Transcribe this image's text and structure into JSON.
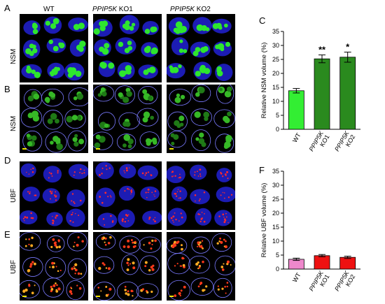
{
  "panels": {
    "A": "A",
    "B": "B",
    "C": "C",
    "D": "D",
    "E": "E",
    "F": "F"
  },
  "column_headers": {
    "wt": "WT",
    "ko1_gene": "PPIP5K",
    "ko1_suffix": " KO1",
    "ko2_gene": "PPIP5K",
    "ko2_suffix": " KO2"
  },
  "row_labels": {
    "A": "NSM",
    "B": "NSM",
    "D": "UBF",
    "E": "UBF"
  },
  "colors": {
    "nucleus_blue": "#1c1cb4",
    "nsm_green": "#2ee62e",
    "ubf_red": "#ff2a2a",
    "bar_wt_nsm": "#33ee33",
    "bar_ko_nsm": "#2a8a1e",
    "bar_wt_ubf": "#ee88cc",
    "bar_ko_ubf": "#ee1111"
  },
  "chart_data": [
    {
      "type": "bar",
      "panel": "C",
      "categories": [
        "WT",
        "PPIP5K KO1",
        "PPIP5K KO2"
      ],
      "category_lines": [
        [
          "WT"
        ],
        [
          "PPIP5K",
          "KO1"
        ],
        [
          "PPIP5K",
          "KO2"
        ]
      ],
      "values": [
        13.8,
        25.2,
        25.8
      ],
      "errors": [
        0.8,
        1.4,
        1.8
      ],
      "significance": [
        "",
        "**",
        "*"
      ],
      "ylabel": "Relative NSM volume (%)",
      "ylim": [
        0,
        35
      ],
      "yticks": [
        0,
        5,
        10,
        15,
        20,
        25,
        30,
        35
      ],
      "colors": [
        "#33ee33",
        "#2a8a1e",
        "#2a8a1e"
      ]
    },
    {
      "type": "bar",
      "panel": "F",
      "categories": [
        "WT",
        "PPIP5K KO1",
        "PPIP5K KO2"
      ],
      "category_lines": [
        [
          "WT"
        ],
        [
          "PPIP5K",
          "KO1"
        ],
        [
          "PPIP5K",
          "KO2"
        ]
      ],
      "values": [
        3.5,
        4.8,
        4.2
      ],
      "errors": [
        0.4,
        0.4,
        0.4
      ],
      "significance": [
        "",
        "",
        ""
      ],
      "ylabel": "Relative UBF volume (%)",
      "ylim": [
        0,
        35
      ],
      "yticks": [
        0,
        5,
        10,
        15,
        20,
        25,
        30,
        35
      ],
      "colors": [
        "#ee88cc",
        "#ee1111",
        "#ee1111"
      ]
    }
  ]
}
